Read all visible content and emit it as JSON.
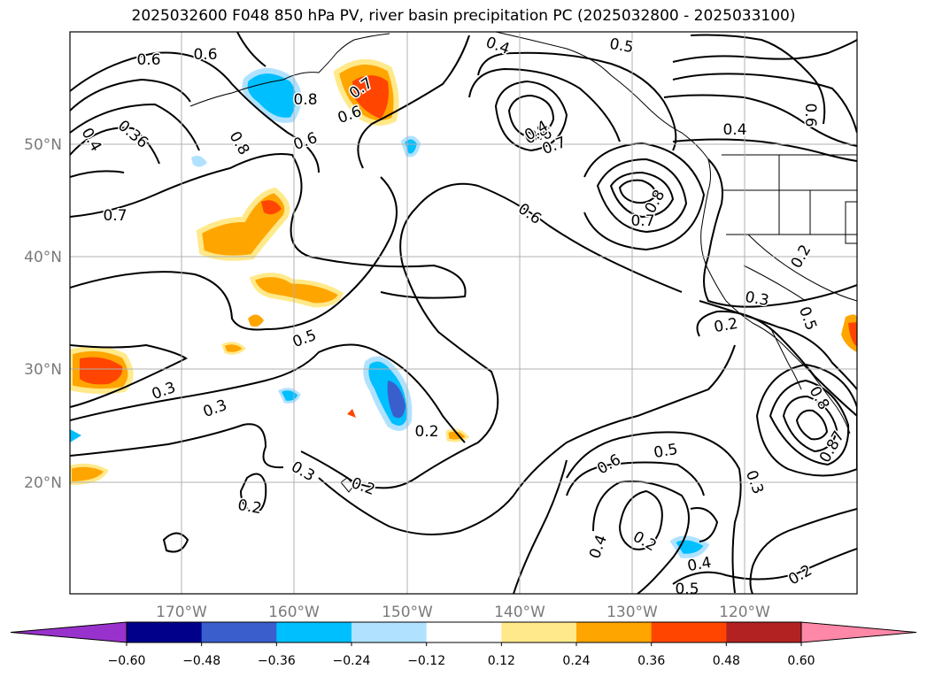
{
  "title": "2025032600 F048 850 hPa PV, river basin precipitation PC (2025032800 - 2025033100)",
  "map": {
    "lon_ticks": [
      "170°W",
      "160°W",
      "150°W",
      "140°W",
      "130°W",
      "120°W"
    ],
    "lat_ticks": [
      "50°N",
      "40°N",
      "30°N",
      "20°N"
    ],
    "contour_labels": [
      "0.6",
      "0.8",
      "0.6",
      "0.7",
      "0.6",
      "0.4",
      "0.5",
      "0.5",
      "0.6",
      "0.4",
      "0.36",
      "0.8",
      "0.6",
      "0.8",
      "0.7",
      "0.6",
      "0.4",
      "0.8",
      "0.7",
      "0.4",
      "0.7",
      "0.2",
      "0.3",
      "0.2",
      "0.5",
      "0.3",
      "0.3",
      "0.2",
      "0.2",
      "0.3",
      "0.2",
      "0.6",
      "0.5",
      "0.3",
      "0.8",
      "0.87",
      "0.6",
      "0.4",
      "0.2",
      "0.4",
      "0.5",
      "0.2"
    ]
  },
  "colorbar": {
    "tick_labels": [
      "−0.60",
      "−0.48",
      "−0.36",
      "−0.24",
      "−0.12",
      "0.12",
      "0.24",
      "0.36",
      "0.48",
      "0.60"
    ],
    "colors": [
      "#9932cc",
      "#00008b",
      "#3a5fcd",
      "#00bfff",
      "#b0e2ff",
      "#ffffff",
      "#ffe98a",
      "#ffa500",
      "#ff4500",
      "#b22222",
      "#ff88a8"
    ]
  }
}
